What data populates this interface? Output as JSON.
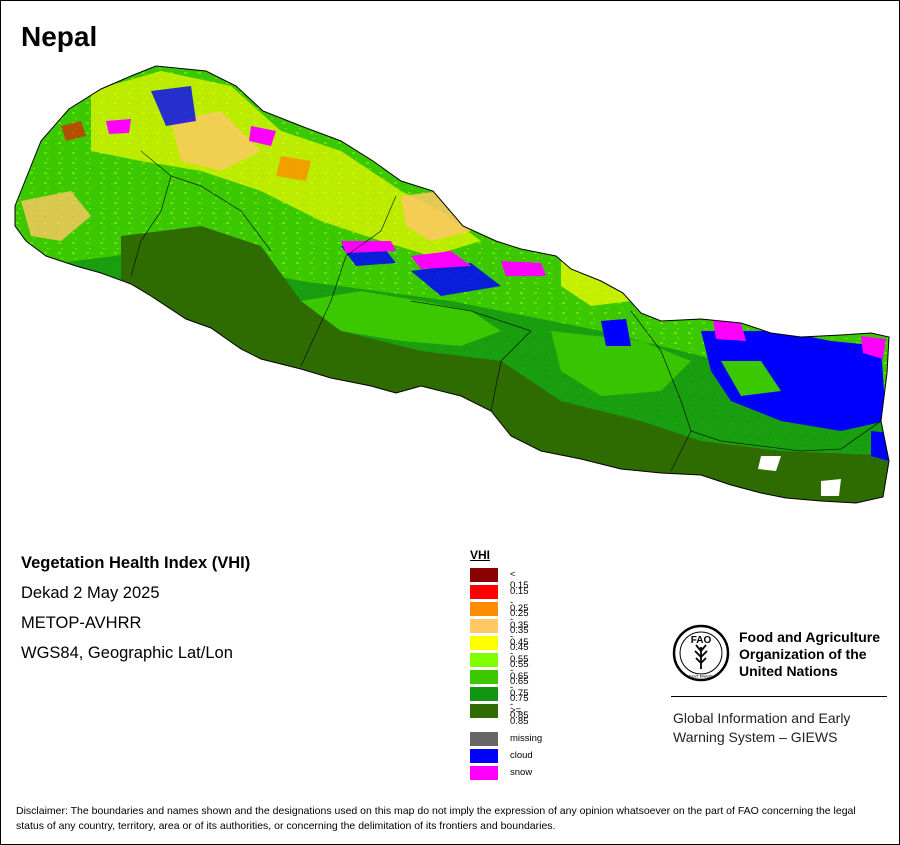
{
  "map": {
    "title": "Nepal",
    "info_lines": {
      "product": "Vegetation Health Index (VHI)",
      "period": "Dekad 2 May 2025",
      "sensor": "METOP-AVHRR",
      "projection": "WGS84, Geographic Lat/Lon"
    }
  },
  "legend": {
    "title": "VHI",
    "classes": [
      {
        "label": "< 0.15",
        "color": "#8B0000"
      },
      {
        "label": "0.15 - 0.25",
        "color": "#FF0000"
      },
      {
        "label": "0.25 - 0.35",
        "color": "#FF8C00"
      },
      {
        "label": "0.35 - 0.45",
        "color": "#FFC864"
      },
      {
        "label": "0.45 - 0.55",
        "color": "#FFFF00"
      },
      {
        "label": "0.55 - 0.65",
        "color": "#80FF00"
      },
      {
        "label": "0.65 - 0.75",
        "color": "#3CC800"
      },
      {
        "label": "0.75 - 0.85",
        "color": "#129612"
      },
      {
        "label": ">= 0.85",
        "color": "#2E6B00"
      }
    ],
    "other": [
      {
        "label": "missing",
        "color": "#666666"
      },
      {
        "label": "cloud",
        "color": "#0000FF"
      },
      {
        "label": "snow",
        "color": "#FF00FF"
      }
    ]
  },
  "organization": {
    "name": "Food and Agriculture Organization of the United Nations",
    "logo_text_top": "FAO",
    "logo_text_bottom": "FIAT PANIS",
    "system": "Global Information and Early Warning System – GIEWS"
  },
  "disclaimer": "Disclaimer: The boundaries and names shown and the designations used on this map do not imply the expression of any opinion whatsoever on the part of FAO concerning the legal status of any country, territory, area or of its authorities, or concerning the delimitation of its frontiers and boundaries."
}
